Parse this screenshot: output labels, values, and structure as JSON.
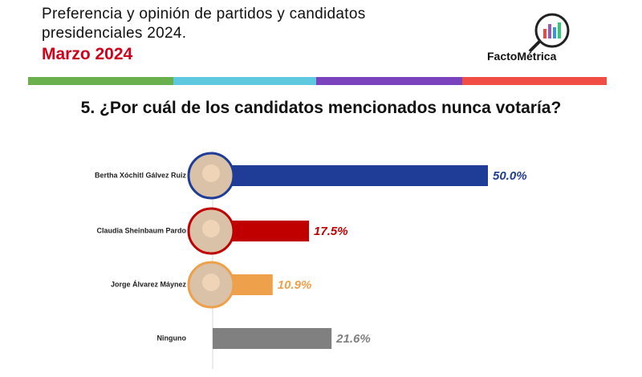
{
  "chart_data": {
    "type": "hbar",
    "title": "Preferencia y opinión de partidos y candidatos presidenciales 2024.",
    "subtitle": "Marzo 2024",
    "brand": "FactoMétrica",
    "question": "5. ¿Por cuál de los candidatos mencionados nunca votaría?",
    "categories": [
      "Bertha Xóchitl Gálvez Ruiz",
      "Claudia Sheinbaum Pardo",
      "Jorge Álvarez Máynez",
      "Ninguno"
    ],
    "values": [
      50.0,
      17.5,
      10.9,
      21.6
    ],
    "value_labels": [
      "50.0%",
      "17.5%",
      "10.9%",
      "21.6%"
    ],
    "colors": [
      "#1f3c96",
      "#c00000",
      "#eea04a",
      "#808080"
    ]
  }
}
